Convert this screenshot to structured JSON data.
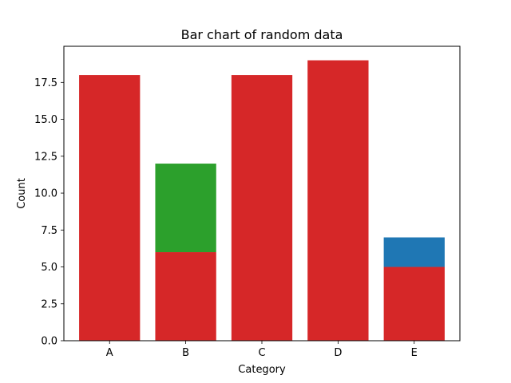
{
  "chart_data": {
    "type": "bar",
    "stacked": true,
    "title": "Bar chart of random data",
    "xlabel": "Category",
    "ylabel": "Count",
    "categories": [
      "A",
      "B",
      "C",
      "D",
      "E"
    ],
    "ylim": [
      0,
      19.95
    ],
    "yticks": [
      "0.0",
      "2.5",
      "5.0",
      "7.5",
      "10.0",
      "12.5",
      "15.0",
      "17.5"
    ],
    "grid": false,
    "segments": [
      {
        "category": "A",
        "base": 0,
        "value": 18,
        "color": "#d62728"
      },
      {
        "category": "B",
        "base": 0,
        "value": 6,
        "color": "#d62728"
      },
      {
        "category": "B",
        "base": 6,
        "value": 6,
        "color": "#2ca02c"
      },
      {
        "category": "C",
        "base": 0,
        "value": 18,
        "color": "#d62728"
      },
      {
        "category": "D",
        "base": 0,
        "value": 19,
        "color": "#d62728"
      },
      {
        "category": "E",
        "base": 0,
        "value": 5,
        "color": "#d62728"
      },
      {
        "category": "E",
        "base": 5,
        "value": 2,
        "color": "#1f77b4"
      }
    ]
  }
}
